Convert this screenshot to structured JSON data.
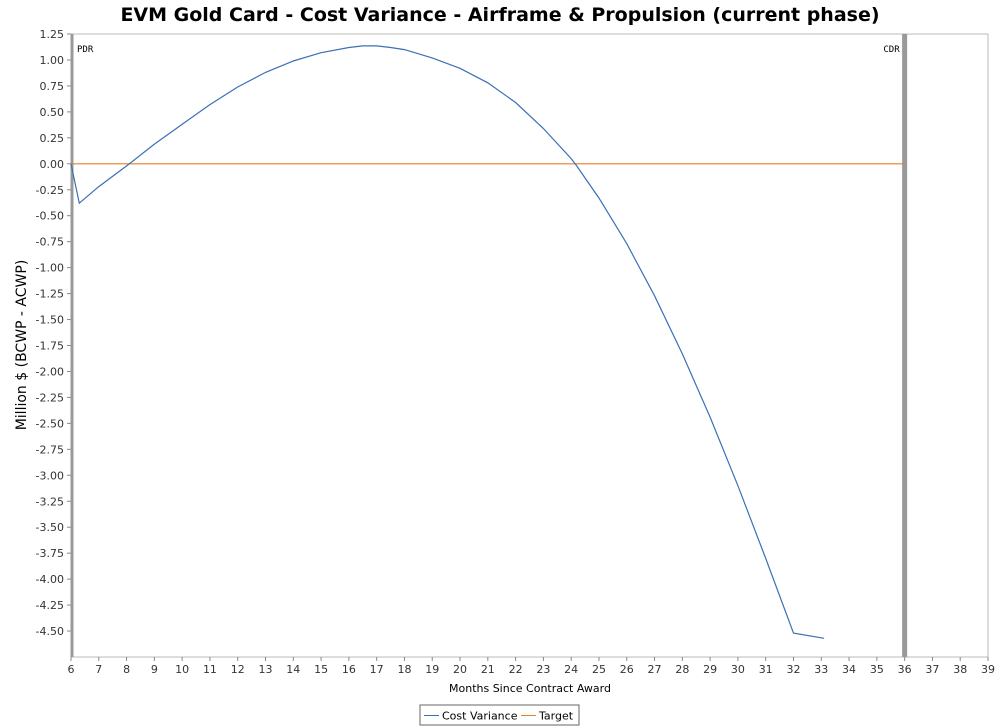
{
  "chart_data": {
    "type": "line",
    "title": "EVM Gold Card - Cost Variance - Airframe & Propulsion (current phase)",
    "xlabel": "Months Since Contract Award",
    "ylabel": "Million $ (BCWP - ACWP)",
    "xlim": [
      6,
      39
    ],
    "ylim": [
      -4.75,
      1.25
    ],
    "x_ticks": [
      6,
      7,
      8,
      9,
      10,
      11,
      12,
      13,
      14,
      15,
      16,
      17,
      18,
      19,
      20,
      21,
      22,
      23,
      24,
      25,
      26,
      27,
      28,
      29,
      30,
      31,
      32,
      33,
      34,
      35,
      36,
      37,
      38,
      39
    ],
    "y_ticks": [
      1.25,
      1.0,
      0.75,
      0.5,
      0.25,
      0.0,
      -0.25,
      -0.5,
      -0.75,
      -1.0,
      -1.25,
      -1.5,
      -1.75,
      -2.0,
      -2.25,
      -2.5,
      -2.75,
      -3.0,
      -3.25,
      -3.5,
      -3.75,
      -4.0,
      -4.25,
      -4.5
    ],
    "y_tick_labels": [
      "1.25",
      "1.00",
      "0.75",
      "0.50",
      "0.25",
      "0.00",
      "-0.25",
      "-0.50",
      "-0.75",
      "-1.00",
      "-1.25",
      "-1.50",
      "-1.75",
      "-2.00",
      "-2.25",
      "-2.50",
      "-2.75",
      "-3.00",
      "-3.25",
      "-3.50",
      "-3.75",
      "-4.00",
      "-4.25",
      "-4.50"
    ],
    "series": [
      {
        "name": "Cost Variance",
        "color": "#3b6fb6",
        "x": [
          6.0,
          6.3,
          7.0,
          8.0,
          9.0,
          10.0,
          11.0,
          12.0,
          13.0,
          14.0,
          15.0,
          16.0,
          16.5,
          17.0,
          17.5,
          18.0,
          19.0,
          20.0,
          21.0,
          22.0,
          23.0,
          24.0,
          24.2,
          25.0,
          26.0,
          27.0,
          28.0,
          29.0,
          30.0,
          31.0,
          32.0,
          33.1
        ],
        "values": [
          0.0,
          -0.38,
          -0.22,
          -0.02,
          0.19,
          0.38,
          0.57,
          0.74,
          0.88,
          0.99,
          1.07,
          1.12,
          1.135,
          1.135,
          1.12,
          1.1,
          1.02,
          0.92,
          0.78,
          0.59,
          0.34,
          0.05,
          -0.02,
          -0.33,
          -0.77,
          -1.27,
          -1.83,
          -2.44,
          -3.1,
          -3.8,
          -4.52,
          -4.57
        ]
      },
      {
        "name": "Target",
        "color": "#e0812c",
        "x": [
          6.0,
          36.0
        ],
        "values": [
          0.0,
          0.0
        ]
      }
    ],
    "markers": [
      {
        "label": "PDR",
        "x": 6.0
      },
      {
        "label": "CDR",
        "x": 36.0
      }
    ],
    "marker_color": "#999999",
    "grid": false,
    "legend": [
      "Cost Variance",
      "Target"
    ],
    "legend_position": "bottom-center"
  }
}
